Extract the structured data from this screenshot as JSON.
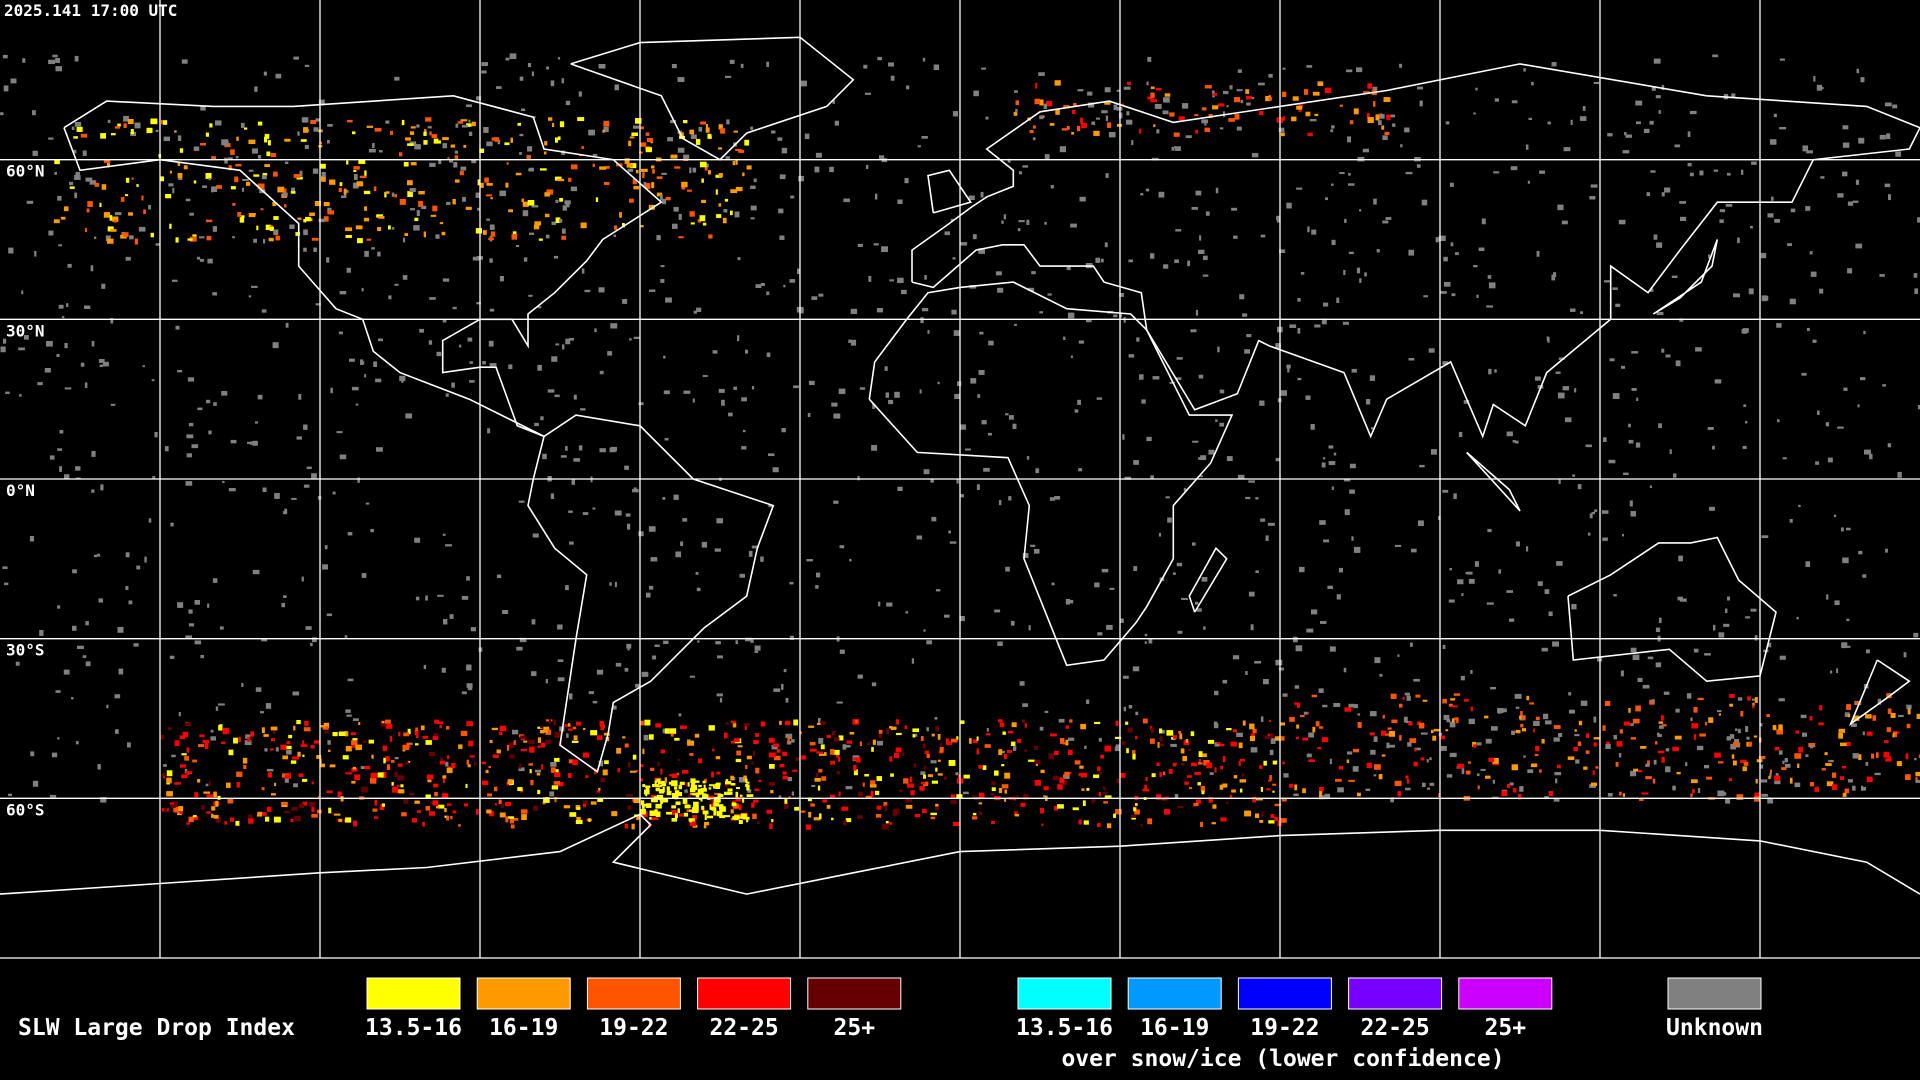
{
  "header": {
    "timestamp": "2025.141 17:00 UTC"
  },
  "map": {
    "latitude_labels": [
      "60°N",
      "30°N",
      "0°N",
      "30°S",
      "60°S"
    ]
  },
  "legend": {
    "title": "SLW Large Drop Index",
    "water_items": [
      {
        "label": "13.5-16",
        "color": "#ffff00"
      },
      {
        "label": "16-19",
        "color": "#ff9900"
      },
      {
        "label": "19-22",
        "color": "#ff5500"
      },
      {
        "label": "22-25",
        "color": "#ff0000"
      },
      {
        "label": "25+",
        "color": "#660000"
      }
    ],
    "ice_items": [
      {
        "label": "13.5-16",
        "color": "#00ffff"
      },
      {
        "label": "16-19",
        "color": "#0099ff"
      },
      {
        "label": "19-22",
        "color": "#0000ff"
      },
      {
        "label": "22-25",
        "color": "#7700ff"
      },
      {
        "label": "25+",
        "color": "#cc00ff"
      }
    ],
    "ice_caption": "over snow/ice (lower confidence)",
    "unknown": {
      "label": "Unknown",
      "color": "#808080"
    }
  }
}
